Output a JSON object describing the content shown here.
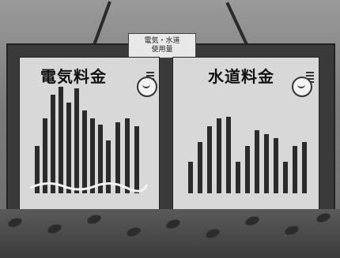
{
  "sign": {
    "line1": "電気・水道",
    "line2": "使用量"
  },
  "panels": {
    "left": {
      "title": "電気料金"
    },
    "right": {
      "title": "水道料金"
    }
  }
}
